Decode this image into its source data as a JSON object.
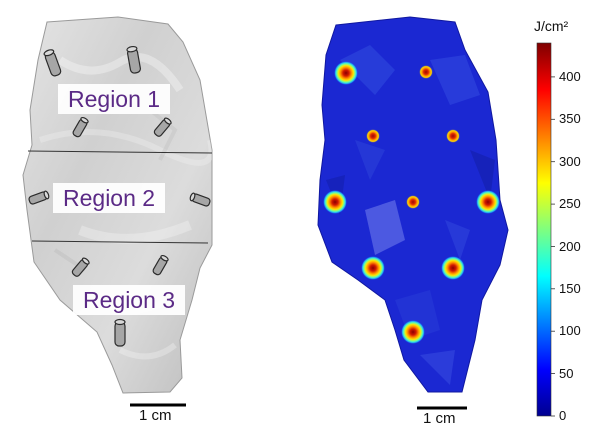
{
  "left_panel": {
    "regions": [
      {
        "label": "Region 1"
      },
      {
        "label": "Region 2"
      },
      {
        "label": "Region 3"
      }
    ],
    "scale_bar_label": "1 cm"
  },
  "right_panel": {
    "scale_bar_label": "1 cm",
    "hotspots": [
      {
        "name": "hotspot-1",
        "intensity": "high"
      },
      {
        "name": "hotspot-2",
        "intensity": "low"
      },
      {
        "name": "hotspot-3",
        "intensity": "low"
      },
      {
        "name": "hotspot-4",
        "intensity": "low"
      },
      {
        "name": "hotspot-5",
        "intensity": "high"
      },
      {
        "name": "hotspot-6",
        "intensity": "low"
      },
      {
        "name": "hotspot-7",
        "intensity": "high"
      },
      {
        "name": "hotspot-8",
        "intensity": "high"
      },
      {
        "name": "hotspot-9",
        "intensity": "high"
      },
      {
        "name": "hotspot-10",
        "intensity": "high"
      }
    ]
  },
  "colorbar": {
    "unit": "J/cm²",
    "min": 0,
    "max": 440,
    "ticks": [
      "400",
      "350",
      "300",
      "250",
      "200",
      "150",
      "100",
      "50",
      "0"
    ],
    "colors": [
      "#00008f",
      "#0000ff",
      "#007fff",
      "#00ffff",
      "#7fff7f",
      "#ffff00",
      "#ff7f00",
      "#ff0000",
      "#7f0000"
    ]
  }
}
